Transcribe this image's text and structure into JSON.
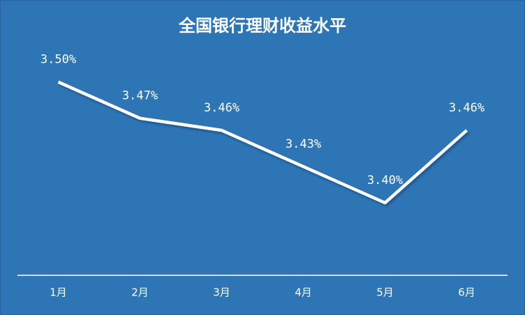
{
  "chart_data": {
    "type": "line",
    "title": "全国银行理财收益水平",
    "categories": [
      "1月",
      "2月",
      "3月",
      "4月",
      "5月",
      "6月"
    ],
    "values": [
      3.5,
      3.47,
      3.46,
      3.43,
      3.4,
      3.46
    ],
    "value_labels": [
      "3.50%",
      "3.47%",
      "3.46%",
      "3.43%",
      "3.40%",
      "3.46%"
    ],
    "color": "#ffffff",
    "background": "#2e75b6",
    "ylim": [
      3.34,
      3.52
    ]
  }
}
